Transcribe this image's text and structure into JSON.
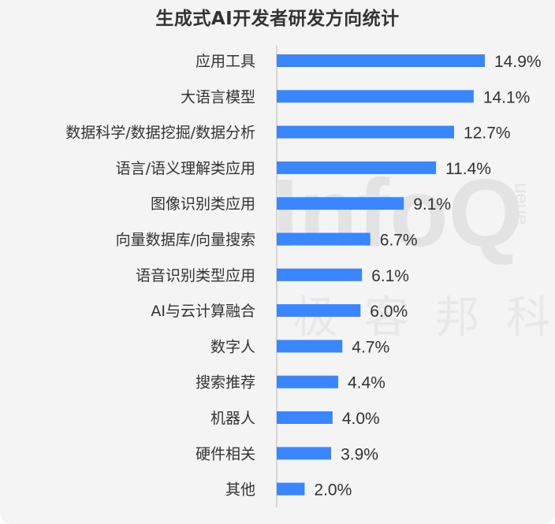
{
  "chart_data": {
    "type": "bar",
    "orientation": "horizontal",
    "title": "生成式AI开发者研发方向统计",
    "categories": [
      "应用工具",
      "大语言模型",
      "数据科学/数据挖掘/数据分析",
      "语言/语义理解类应用",
      "图像识别类应用",
      "向量数据库/向量搜索",
      "语音识别类型应用",
      "AI与云计算融合",
      "数字人",
      "搜索推荐",
      "机器人",
      "硬件相关",
      "其他"
    ],
    "values": [
      14.9,
      14.1,
      12.7,
      11.4,
      9.1,
      6.7,
      6.1,
      6.0,
      4.7,
      4.4,
      4.0,
      3.9,
      2.0
    ],
    "value_labels": [
      "14.9%",
      "14.1%",
      "12.7%",
      "11.4%",
      "9.1%",
      "6.7%",
      "6.1%",
      "6.0%",
      "4.7%",
      "4.4%",
      "4.0%",
      "3.9%",
      "2.0%"
    ],
    "unit": "%",
    "bar_color": "#3a86ff",
    "grid": false,
    "legend": "none"
  },
  "watermark": {
    "logo": "InfoQ",
    "side_text": "ueue",
    "chinese": "极客邦科技"
  },
  "colors": {
    "background": "#f4f4f4",
    "bar": "#3a86ff",
    "text": "#333333",
    "axis": "#cccccc"
  }
}
